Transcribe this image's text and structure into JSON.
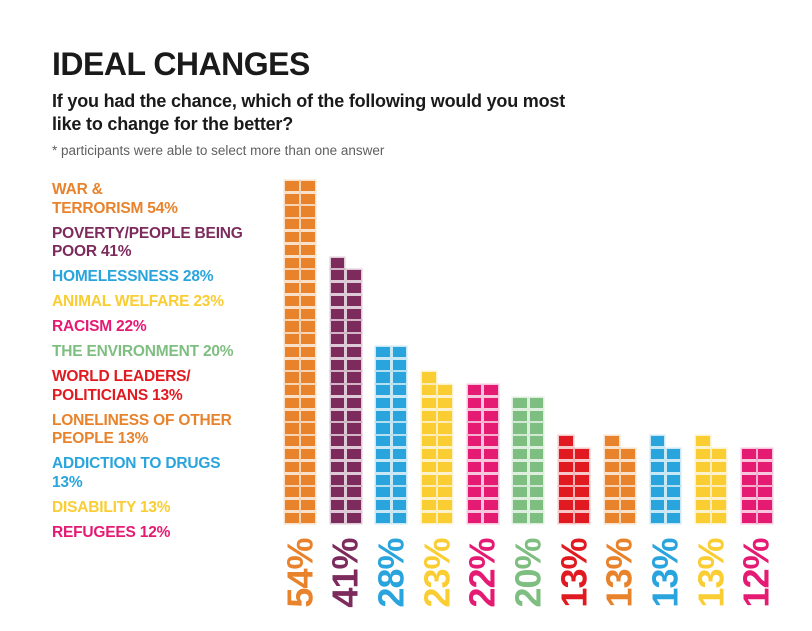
{
  "header": {
    "title": "IDEAL CHANGES",
    "subtitle": "If you had the chance, which of the following would you most\nlike to change for the better?",
    "note": "* participants were able to select more than one answer"
  },
  "palette": {
    "orange": "#E8832C",
    "plum": "#7D2B5C",
    "blue": "#29A4DD",
    "yellow": "#FACD32",
    "pink": "#E51A73",
    "green": "#7FBE81",
    "red": "#E01A20",
    "text_black": "#1A1A1A",
    "note_gray": "#5F5F5F"
  },
  "legend": {
    "items": [
      {
        "label": "WAR &\nTERRORISM 54%",
        "color": "orange"
      },
      {
        "label": "POVERTY/PEOPLE BEING\nPOOR 41%",
        "color": "plum"
      },
      {
        "label": "HOMELESSNESS 28%",
        "color": "blue"
      },
      {
        "label": "ANIMAL WELFARE 23%",
        "color": "yellow"
      },
      {
        "label": "RACISM 22%",
        "color": "pink"
      },
      {
        "label": "THE ENVIRONMENT 20%",
        "color": "green"
      },
      {
        "label": "WORLD LEADERS/\nPOLITICIANS 13%",
        "color": "red"
      },
      {
        "label": "LONELINESS OF OTHER\nPEOPLE 13%",
        "color": "orange"
      },
      {
        "label": "ADDICTION TO DRUGS\n13%",
        "color": "blue"
      },
      {
        "label": "DISABILITY 13%",
        "color": "yellow"
      },
      {
        "label": "REFUGEES 12%",
        "color": "pink"
      }
    ]
  },
  "chart_data": {
    "type": "bar",
    "subtype": "waffle-columns",
    "square_unit": "1 square = 1%, two squares per row, odd remainder drawn as single top-left square",
    "title": "IDEAL CHANGES",
    "subtitle": "If you had the chance, which of the following would you most like to change for the better?",
    "footnote": "* participants were able to select more than one answer",
    "categories": [
      "WAR & TERRORISM",
      "POVERTY/PEOPLE BEING POOR",
      "HOMELESSNESS",
      "ANIMAL WELFARE",
      "RACISM",
      "THE ENVIRONMENT",
      "WORLD LEADERS/POLITICIANS",
      "LONELINESS OF OTHER PEOPLE",
      "ADDICTION TO DRUGS",
      "DISABILITY",
      "REFUGEES"
    ],
    "values": [
      54,
      41,
      28,
      23,
      22,
      20,
      13,
      13,
      13,
      13,
      12
    ],
    "value_labels": [
      "54%",
      "41%",
      "28%",
      "23%",
      "22%",
      "20%",
      "13%",
      "13%",
      "13%",
      "13%",
      "12%"
    ],
    "bar_colors": [
      "orange",
      "plum",
      "blue",
      "yellow",
      "pink",
      "green",
      "red",
      "orange",
      "blue",
      "yellow",
      "pink"
    ],
    "unit": "%",
    "ylim": [
      0,
      54
    ],
    "grid": false,
    "legend_position": "left",
    "value_label_position": "below, rotated 90deg reading bottom-to-top"
  }
}
